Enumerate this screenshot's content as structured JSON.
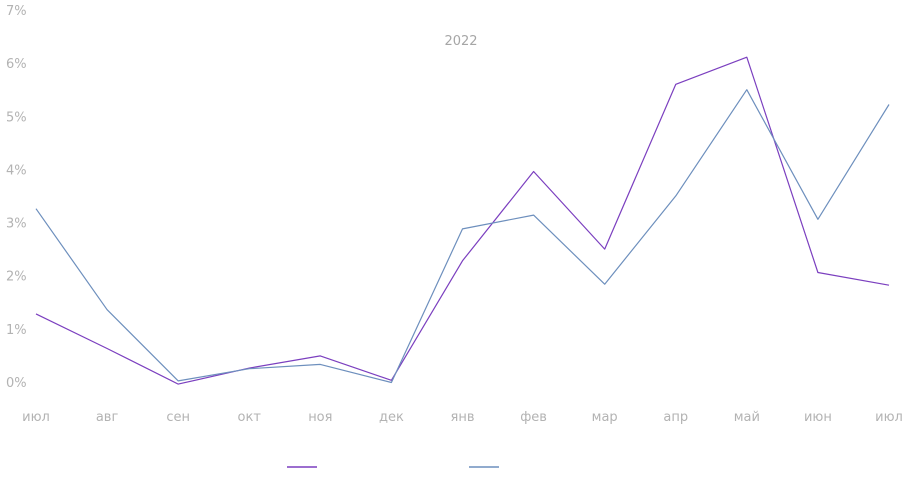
{
  "chart_data": {
    "type": "line",
    "categories": [
      "июл",
      "авг",
      "сен",
      "окт",
      "ноя",
      "дек",
      "янв",
      "фев",
      "мар",
      "апр",
      "май",
      "июн",
      "июл"
    ],
    "series": [
      {
        "values": [
          1.3,
          0.65,
          -0.02,
          0.28,
          0.51,
          0.05,
          2.3,
          3.98,
          2.52,
          5.62,
          6.13,
          2.08,
          1.84
        ]
      },
      {
        "values": [
          3.28,
          1.38,
          0.04,
          0.27,
          0.35,
          0.01,
          2.9,
          3.16,
          1.86,
          3.52,
          5.52,
          3.08,
          5.24
        ]
      }
    ],
    "y_ticks": [
      "0%",
      "1%",
      "2%",
      "3%",
      "4%",
      "5%",
      "6%",
      "7%"
    ],
    "ylim": [
      0,
      7
    ],
    "annotation": "2022",
    "legend_position": "bottom",
    "grid": false,
    "colors": [
      "#7b3fbf",
      "#6d8fbd"
    ]
  }
}
